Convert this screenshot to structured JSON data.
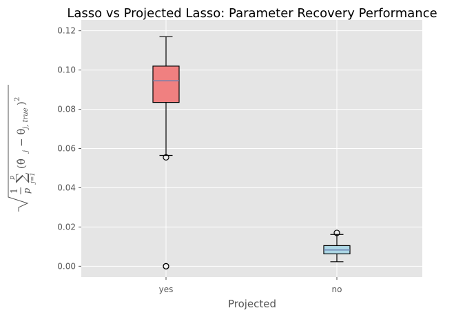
{
  "chart_data": {
    "type": "box",
    "title": "Lasso vs Projected Lasso: Parameter Recovery Performance",
    "xlabel": "Projected",
    "ylabel": "√( (1/p) Σ_{j=1}^{p} (θ̂_j − θ_{j,true})² )",
    "ylim": [
      -0.0055,
      0.1255
    ],
    "yticks": [
      "0.00",
      "0.02",
      "0.04",
      "0.06",
      "0.08",
      "0.10",
      "0.12"
    ],
    "ytick_values": [
      0.0,
      0.02,
      0.04,
      0.06,
      0.08,
      0.1,
      0.12
    ],
    "categories": [
      "yes",
      "no"
    ],
    "grid": true,
    "background": "#e5e5e5",
    "boxes": [
      {
        "category": "yes",
        "whisker_low": 0.0565,
        "q1": 0.0835,
        "median": 0.0945,
        "q3": 0.102,
        "whisker_high": 0.117,
        "outliers": [
          0.0555,
          0.0,
          0.0
        ],
        "fill": "#f08080",
        "median_color": "#6a7fb0"
      },
      {
        "category": "no",
        "whisker_low": 0.0023,
        "q1": 0.0063,
        "median": 0.0083,
        "q3": 0.0105,
        "whisker_high": 0.0162,
        "outliers": [
          0.017
        ],
        "fill": "#add8e6",
        "median_color": "#6a7fb0"
      }
    ]
  }
}
